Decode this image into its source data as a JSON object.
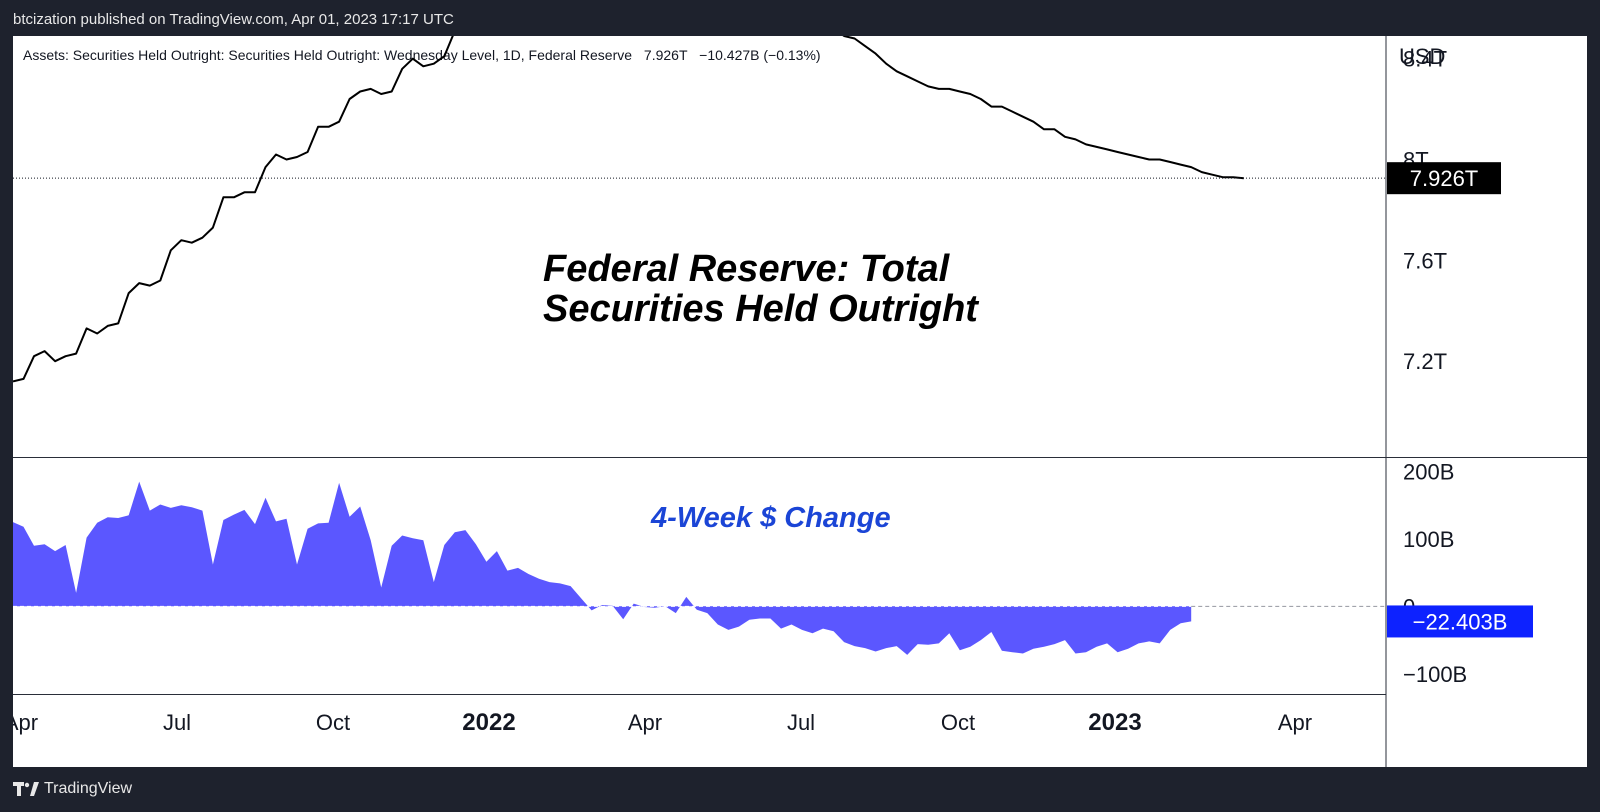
{
  "header": {
    "published": "btcization published on TradingView.com, Apr 01, 2023 17:17 UTC"
  },
  "footer": {
    "brand": "TradingView",
    "logo_icon": "tradingview-logo-icon"
  },
  "chart_data": [
    {
      "type": "line",
      "title": "Federal Reserve: Total Securities Held Outright",
      "title_lines": [
        "Federal Reserve: Total",
        "Securities Held Outright"
      ],
      "legend_text": "Assets: Securities Held Outright: Securities Held Outright: Wednesday Level, 1D, Federal Reserve",
      "legend_value": "7.926T",
      "legend_change": "−10.427B (−0.13%)",
      "currency": "USD",
      "y_ticks": [
        {
          "value": 7.2,
          "label": "7.2T"
        },
        {
          "value": 7.6,
          "label": "7.6T"
        },
        {
          "value": 8.0,
          "label": "8T"
        },
        {
          "value": 8.4,
          "label": "8.4T"
        }
      ],
      "last_value_label": "7.926T",
      "ylim": [
        6.82,
        8.49
      ],
      "line_color": "#000000",
      "series": [
        {
          "values": [
            7.12,
            7.13,
            7.22,
            7.24,
            7.2,
            7.22,
            7.23,
            7.33,
            7.31,
            7.34,
            7.35,
            7.47,
            7.51,
            7.5,
            7.52,
            7.64,
            7.68,
            7.67,
            7.69,
            7.73,
            7.85,
            7.85,
            7.87,
            7.87,
            7.97,
            8.02,
            8.0,
            8.01,
            8.03,
            8.13,
            8.13,
            8.15,
            8.24,
            8.27,
            8.28,
            8.26,
            8.27,
            8.36,
            8.4,
            8.37,
            8.38,
            8.41,
            8.51,
            8.51,
            8.52,
            8.53,
            8.58,
            8.6,
            8.58,
            8.59,
            8.64,
            8.66,
            8.64,
            8.65,
            8.66,
            8.66,
            8.65,
            8.66,
            8.65,
            8.65,
            8.66,
            8.64,
            8.64,
            8.64,
            8.66,
            8.65,
            8.64,
            8.62,
            8.62,
            8.62,
            8.61,
            8.59,
            8.58,
            8.58,
            8.57,
            8.55,
            8.55,
            8.54,
            8.52,
            8.49,
            8.48,
            8.45,
            8.42,
            8.38,
            8.35,
            8.33,
            8.31,
            8.29,
            8.28,
            8.28,
            8.27,
            8.26,
            8.24,
            8.21,
            8.21,
            8.19,
            8.17,
            8.15,
            8.12,
            8.12,
            8.09,
            8.08,
            8.06,
            8.05,
            8.04,
            8.03,
            8.02,
            8.01,
            8.0,
            8.0,
            7.99,
            7.98,
            7.97,
            7.95,
            7.94,
            7.93,
            7.93,
            7.926
          ]
        }
      ]
    },
    {
      "type": "area",
      "title": "4-Week $ Change",
      "y_ticks": [
        {
          "value": 200,
          "label": "200B"
        },
        {
          "value": 100,
          "label": "100B"
        },
        {
          "value": 0,
          "label": "0"
        },
        {
          "value": -100,
          "label": "−100B"
        }
      ],
      "last_value_label": "−22.403B",
      "ylim": [
        -130,
        220
      ],
      "area_color": "#5b57ff",
      "series": [
        {
          "values": [
            125,
            118,
            90,
            92,
            82,
            91,
            20,
            102,
            124,
            132,
            131,
            135,
            185,
            142,
            151,
            146,
            150,
            147,
            142,
            62,
            128,
            136,
            143,
            122,
            161,
            126,
            130,
            62,
            115,
            123,
            124,
            183,
            133,
            148,
            98,
            28,
            90,
            105,
            101,
            98,
            36,
            91,
            110,
            113,
            92,
            66,
            82,
            53,
            57,
            48,
            41,
            36,
            34,
            30,
            12,
            -6,
            2,
            1,
            -19,
            4,
            -1,
            -2,
            0,
            -10,
            14,
            -5,
            -10,
            -27,
            -35,
            -30,
            -20,
            -18,
            -18,
            -33,
            -27,
            -35,
            -40,
            -33,
            -37,
            -53,
            -59,
            -62,
            -67,
            -62,
            -59,
            -72,
            -56,
            -57,
            -55,
            -40,
            -65,
            -60,
            -50,
            -38,
            -66,
            -68,
            -70,
            -63,
            -60,
            -56,
            -50,
            -70,
            -68,
            -60,
            -55,
            -68,
            -63,
            -55,
            -52,
            -55,
            -35,
            -25,
            -22.403
          ]
        }
      ]
    }
  ],
  "x_axis": {
    "ticks": [
      {
        "label": "Apr",
        "bold": false
      },
      {
        "label": "Jul",
        "bold": false
      },
      {
        "label": "Oct",
        "bold": false
      },
      {
        "label": "2022",
        "bold": true
      },
      {
        "label": "Apr",
        "bold": false
      },
      {
        "label": "Jul",
        "bold": false
      },
      {
        "label": "Oct",
        "bold": false
      },
      {
        "label": "2023",
        "bold": true
      },
      {
        "label": "Apr",
        "bold": false
      }
    ]
  }
}
